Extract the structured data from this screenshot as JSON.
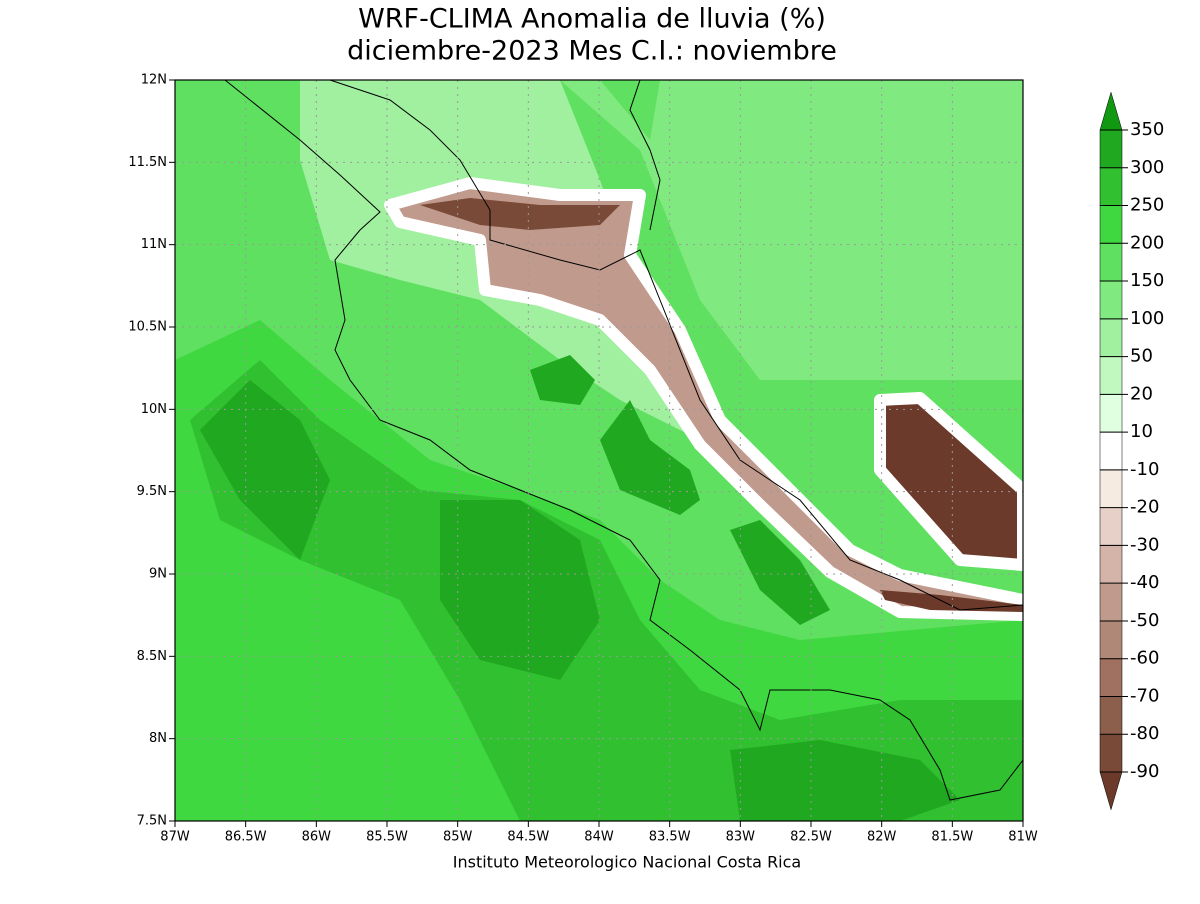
{
  "title": [
    "WRF-CLIMA Anomalia de lluvia (%)",
    "diciembre-2023 Mes C.I.: noviembre"
  ],
  "map": {
    "lon_range": [
      -87,
      -81
    ],
    "lat_range": [
      7.5,
      12
    ],
    "lon_ticks": [
      {
        "value": -87,
        "label": "87W"
      },
      {
        "value": -86.5,
        "label": "86.5W"
      },
      {
        "value": -86,
        "label": "86W"
      },
      {
        "value": -85.5,
        "label": "85.5W"
      },
      {
        "value": -85,
        "label": "85W"
      },
      {
        "value": -84.5,
        "label": "84.5W"
      },
      {
        "value": -84,
        "label": "84W"
      },
      {
        "value": -83.5,
        "label": "83.5W"
      },
      {
        "value": -83,
        "label": "83W"
      },
      {
        "value": -82.5,
        "label": "82.5W"
      },
      {
        "value": -82,
        "label": "82W"
      },
      {
        "value": -81.5,
        "label": "81.5W"
      },
      {
        "value": -81,
        "label": "81W"
      }
    ],
    "lat_ticks": [
      {
        "value": 12,
        "label": "12N"
      },
      {
        "value": 11.5,
        "label": "11.5N"
      },
      {
        "value": 11,
        "label": "11N"
      },
      {
        "value": 10.5,
        "label": "10.5N"
      },
      {
        "value": 10,
        "label": "10N"
      },
      {
        "value": 9.5,
        "label": "9.5N"
      },
      {
        "value": 9,
        "label": "9N"
      },
      {
        "value": 8.5,
        "label": "8.5N"
      },
      {
        "value": 8,
        "label": "8N"
      },
      {
        "value": 7.5,
        "label": "7.5N"
      }
    ]
  },
  "colorbar": {
    "levels": [
      -90,
      -80,
      -70,
      -60,
      -50,
      -40,
      -30,
      -20,
      -10,
      10,
      20,
      50,
      100,
      150,
      200,
      250,
      300,
      350
    ],
    "colors": [
      "#6b3a2a",
      "#7a4a38",
      "#8c5e4c",
      "#a07060",
      "#b08878",
      "#c09a8c",
      "#d4b4a8",
      "#e6d0c8",
      "#f5ebe0",
      "#ffffff",
      "#e0ffe0",
      "#c0f8c0",
      "#a0f0a0",
      "#80ea80",
      "#60e060",
      "#40d840",
      "#30c030",
      "#20a820",
      "#109810"
    ]
  },
  "credit": "Instituto Meteorologico Nacional Costa Rica"
}
